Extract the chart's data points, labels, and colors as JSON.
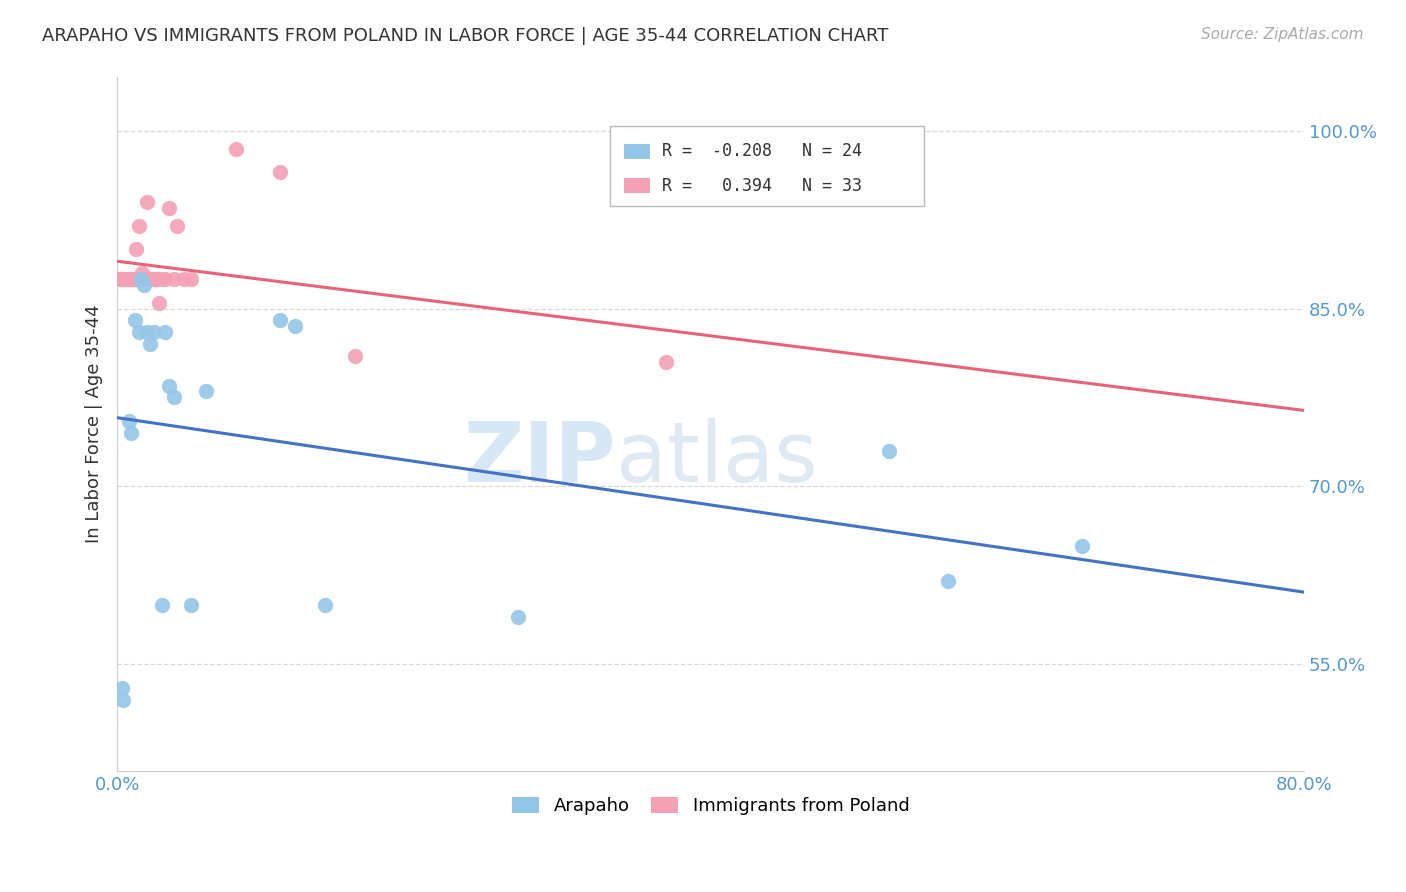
{
  "title": "ARAPAHO VS IMMIGRANTS FROM POLAND IN LABOR FORCE | AGE 35-44 CORRELATION CHART",
  "source": "Source: ZipAtlas.com",
  "ylabel": "In Labor Force | Age 35-44",
  "xlim": [
    0.0,
    0.8
  ],
  "ylim": [
    0.46,
    1.045
  ],
  "xticks": [
    0.0,
    0.1,
    0.2,
    0.3,
    0.4,
    0.5,
    0.6,
    0.7,
    0.8
  ],
  "xticklabels": [
    "0.0%",
    "",
    "",
    "",
    "",
    "",
    "",
    "",
    "80.0%"
  ],
  "yticks": [
    0.55,
    0.7,
    0.85,
    1.0
  ],
  "yticklabels": [
    "55.0%",
    "70.0%",
    "85.0%",
    "100.0%"
  ],
  "arapaho_R": -0.208,
  "arapaho_N": 24,
  "poland_R": 0.394,
  "poland_N": 33,
  "arapaho_color": "#94c6e7",
  "poland_color": "#f4a0b5",
  "arapaho_line_color": "#4472c4",
  "poland_line_color": "#e8637a",
  "watermark_part1": "ZIP",
  "watermark_part2": "atlas",
  "arapaho_x": [
    0.003,
    0.004,
    0.008,
    0.009,
    0.012,
    0.015,
    0.016,
    0.018,
    0.02,
    0.022,
    0.025,
    0.03,
    0.032,
    0.035,
    0.038,
    0.05,
    0.06,
    0.11,
    0.12,
    0.14,
    0.27,
    0.52,
    0.56,
    0.65
  ],
  "arapaho_y": [
    0.53,
    0.52,
    0.755,
    0.745,
    0.84,
    0.83,
    0.875,
    0.87,
    0.83,
    0.82,
    0.83,
    0.6,
    0.83,
    0.785,
    0.775,
    0.6,
    0.78,
    0.84,
    0.835,
    0.6,
    0.59,
    0.73,
    0.62,
    0.65
  ],
  "poland_x": [
    0.002,
    0.003,
    0.004,
    0.005,
    0.006,
    0.007,
    0.008,
    0.009,
    0.01,
    0.011,
    0.012,
    0.013,
    0.014,
    0.015,
    0.016,
    0.017,
    0.018,
    0.02,
    0.022,
    0.025,
    0.027,
    0.028,
    0.03,
    0.032,
    0.035,
    0.038,
    0.04,
    0.045,
    0.05,
    0.08,
    0.11,
    0.16,
    0.37
  ],
  "poland_y": [
    0.875,
    0.875,
    0.875,
    0.875,
    0.875,
    0.875,
    0.875,
    0.875,
    0.875,
    0.875,
    0.875,
    0.9,
    0.875,
    0.92,
    0.875,
    0.88,
    0.875,
    0.94,
    0.875,
    0.875,
    0.875,
    0.855,
    0.875,
    0.875,
    0.935,
    0.875,
    0.92,
    0.875,
    0.875,
    0.985,
    0.965,
    0.81,
    0.805
  ],
  "background_color": "#ffffff",
  "grid_color": "#d8d8d8",
  "title_fontsize": 13,
  "axis_label_fontsize": 13,
  "tick_fontsize": 13,
  "source_fontsize": 11
}
